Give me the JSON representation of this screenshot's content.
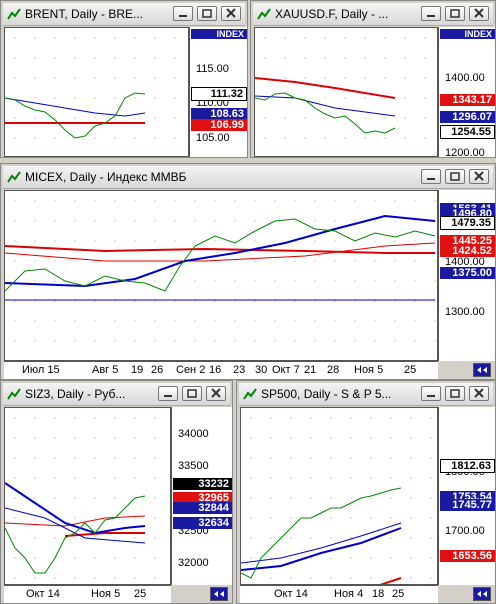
{
  "windows": [
    {
      "title": "BRENT, Daily - BRE...",
      "header": "INDEX",
      "ticks": [
        "115.00",
        "110.00",
        "105.00"
      ],
      "tags": [
        {
          "label": "111.32",
          "color": "white"
        },
        {
          "label": "108.63",
          "color": "blue"
        },
        {
          "label": "106.99",
          "color": "red"
        }
      ],
      "dates": []
    },
    {
      "title": "XAUUSD.F, Daily - ...",
      "header": "INDEX",
      "ticks": [
        "1400.00",
        "1300.00",
        "1200.00"
      ],
      "tags": [
        {
          "label": "1343.17",
          "color": "red"
        },
        {
          "label": "1296.07",
          "color": "blue"
        },
        {
          "label": "1254.55",
          "color": "white"
        }
      ],
      "dates": []
    },
    {
      "title": "MICEX, Daily - Индекс ММВБ",
      "header": null,
      "ticks": [
        "1400.00",
        "1300.00"
      ],
      "tags": [
        {
          "label": "1563.41",
          "color": "blue"
        },
        {
          "label": "1496.80",
          "color": "blue"
        },
        {
          "label": "1479.35",
          "color": "white"
        },
        {
          "label": "1445.25",
          "color": "red"
        },
        {
          "label": "1424.52",
          "color": "red"
        },
        {
          "label": "1375.00",
          "color": "blue"
        }
      ],
      "dates": [
        "Июл 15",
        "Авг 5",
        "19",
        "26",
        "Сен 2",
        "16",
        "23",
        "30",
        "Окт 7",
        "21",
        "28",
        "Ноя 5",
        "25"
      ]
    },
    {
      "title": "SIZ3, Daily - Руб...",
      "header": null,
      "ticks": [
        "34000",
        "33500",
        "32500",
        "32000"
      ],
      "tags": [
        {
          "label": "33232",
          "color": "black"
        },
        {
          "label": "32965",
          "color": "red"
        },
        {
          "label": "32844",
          "color": "blue"
        },
        {
          "label": "32634",
          "color": "blue"
        }
      ],
      "dates": [
        "Окт 14",
        "Ноя 5",
        "25"
      ]
    },
    {
      "title": "SP500, Daily - S & P 5...",
      "header": null,
      "ticks": [
        "1800.00",
        "1700.00"
      ],
      "tags": [
        {
          "label": "1812.63",
          "color": "white"
        },
        {
          "label": "1753.54",
          "color": "blue"
        },
        {
          "label": "1745.77",
          "color": "blue"
        },
        {
          "label": "1653.56",
          "color": "red"
        }
      ],
      "dates": [
        "Окт 14",
        "Ноя 4",
        "18",
        "25"
      ]
    }
  ]
}
